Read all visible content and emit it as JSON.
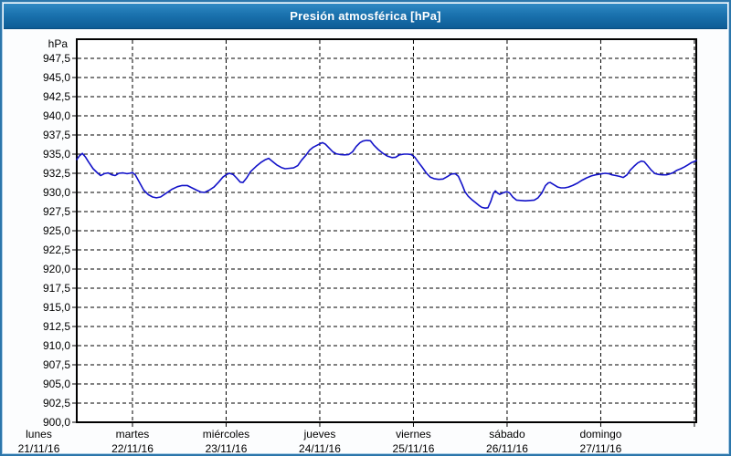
{
  "window": {
    "title": "Presión atmosférica [hPa]"
  },
  "colors": {
    "titlebar_top": "#3089c4",
    "titlebar_bottom": "#0e5c96",
    "frame": "#2c76ab",
    "plot_border": "#000000",
    "grid": "#000000",
    "line": "#1212c8",
    "plot_bg": "#ffffff",
    "text": "#000000",
    "title_text": "#ffffff"
  },
  "chart_data": {
    "type": "line",
    "title": "Presión atmosférica [hPa]",
    "ylabel": "hPa",
    "unit_label": "hPa",
    "ylim": [
      900,
      950
    ],
    "y_tick_step": 2.5,
    "y_tick_labels": [
      "947,5",
      "945,0",
      "942,5",
      "940,0",
      "937,5",
      "935,0",
      "932,5",
      "930,0",
      "927,5",
      "925,0",
      "922,5",
      "920,0",
      "917,5",
      "915,0",
      "912,5",
      "910,0",
      "907,5",
      "905,0",
      "902,5",
      "900,0"
    ],
    "grid": "dashed",
    "legend_position": "none",
    "x_axis": {
      "unit": "days_since_monday_midnight",
      "t_start": 0.405,
      "t_end": 7.02,
      "day_gridlines_at": [
        1,
        2,
        3,
        4,
        5,
        6,
        7
      ],
      "day_labels": [
        {
          "t": 0,
          "name": "lunes",
          "date": "21/11/16"
        },
        {
          "t": 1,
          "name": "martes",
          "date": "22/11/16"
        },
        {
          "t": 2,
          "name": "miércoles",
          "date": "23/11/16"
        },
        {
          "t": 3,
          "name": "jueves",
          "date": "24/11/16"
        },
        {
          "t": 4,
          "name": "viernes",
          "date": "25/11/16"
        },
        {
          "t": 5,
          "name": "sábado",
          "date": "26/11/16"
        },
        {
          "t": 6,
          "name": "domingo",
          "date": "27/11/16"
        }
      ]
    },
    "series": [
      {
        "name": "Presión atmosférica",
        "color": "#1212c8",
        "points": [
          [
            0.405,
            934.3
          ],
          [
            0.435,
            934.8
          ],
          [
            0.465,
            935.1
          ],
          [
            0.5,
            934.6
          ],
          [
            0.53,
            934.0
          ],
          [
            0.58,
            933.1
          ],
          [
            0.63,
            932.5
          ],
          [
            0.66,
            932.2
          ],
          [
            0.7,
            932.45
          ],
          [
            0.74,
            932.55
          ],
          [
            0.78,
            932.3
          ],
          [
            0.815,
            932.2
          ],
          [
            0.855,
            932.5
          ],
          [
            0.9,
            932.55
          ],
          [
            0.94,
            932.45
          ],
          [
            0.97,
            932.5
          ],
          [
            1.0,
            932.6
          ],
          [
            1.03,
            932.3
          ],
          [
            1.07,
            931.4
          ],
          [
            1.12,
            930.3
          ],
          [
            1.17,
            929.7
          ],
          [
            1.215,
            929.4
          ],
          [
            1.255,
            929.3
          ],
          [
            1.3,
            929.4
          ],
          [
            1.36,
            929.9
          ],
          [
            1.42,
            930.4
          ],
          [
            1.48,
            930.75
          ],
          [
            1.53,
            930.9
          ],
          [
            1.585,
            930.9
          ],
          [
            1.635,
            930.6
          ],
          [
            1.685,
            930.3
          ],
          [
            1.73,
            930.05
          ],
          [
            1.77,
            930.0
          ],
          [
            1.82,
            930.3
          ],
          [
            1.87,
            930.7
          ],
          [
            1.92,
            931.35
          ],
          [
            1.965,
            932.0
          ],
          [
            2.005,
            932.35
          ],
          [
            2.035,
            932.5
          ],
          [
            2.075,
            932.35
          ],
          [
            2.11,
            931.9
          ],
          [
            2.15,
            931.35
          ],
          [
            2.18,
            931.3
          ],
          [
            2.22,
            931.9
          ],
          [
            2.26,
            932.7
          ],
          [
            2.32,
            933.4
          ],
          [
            2.37,
            933.9
          ],
          [
            2.415,
            934.25
          ],
          [
            2.455,
            934.45
          ],
          [
            2.49,
            934.1
          ],
          [
            2.54,
            933.6
          ],
          [
            2.59,
            933.25
          ],
          [
            2.63,
            933.1
          ],
          [
            2.68,
            933.15
          ],
          [
            2.72,
            933.2
          ],
          [
            2.765,
            933.5
          ],
          [
            2.805,
            934.2
          ],
          [
            2.855,
            934.9
          ],
          [
            2.89,
            935.5
          ],
          [
            2.93,
            935.9
          ],
          [
            2.97,
            936.15
          ],
          [
            3.01,
            936.4
          ],
          [
            3.03,
            936.5
          ],
          [
            3.06,
            936.3
          ],
          [
            3.1,
            935.8
          ],
          [
            3.14,
            935.3
          ],
          [
            3.175,
            935.05
          ],
          [
            3.215,
            934.95
          ],
          [
            3.265,
            934.9
          ],
          [
            3.31,
            934.95
          ],
          [
            3.35,
            935.3
          ],
          [
            3.39,
            936.0
          ],
          [
            3.43,
            936.5
          ],
          [
            3.46,
            936.7
          ],
          [
            3.5,
            936.8
          ],
          [
            3.54,
            936.75
          ],
          [
            3.575,
            936.2
          ],
          [
            3.625,
            935.6
          ],
          [
            3.675,
            935.1
          ],
          [
            3.72,
            934.75
          ],
          [
            3.77,
            934.55
          ],
          [
            3.81,
            934.6
          ],
          [
            3.85,
            934.9
          ],
          [
            3.9,
            935.0
          ],
          [
            3.94,
            935.0
          ],
          [
            3.975,
            934.95
          ],
          [
            4.015,
            934.6
          ],
          [
            4.055,
            933.9
          ],
          [
            4.09,
            933.35
          ],
          [
            4.14,
            932.5
          ],
          [
            4.18,
            932.0
          ],
          [
            4.22,
            931.8
          ],
          [
            4.27,
            931.7
          ],
          [
            4.315,
            931.75
          ],
          [
            4.365,
            932.1
          ],
          [
            4.405,
            932.4
          ],
          [
            4.445,
            932.45
          ],
          [
            4.48,
            932.1
          ],
          [
            4.52,
            931.0
          ],
          [
            4.55,
            930.1
          ],
          [
            4.585,
            929.5
          ],
          [
            4.62,
            929.1
          ],
          [
            4.66,
            928.7
          ],
          [
            4.7,
            928.3
          ],
          [
            4.73,
            928.05
          ],
          [
            4.765,
            927.95
          ],
          [
            4.795,
            928.0
          ],
          [
            4.825,
            928.8
          ],
          [
            4.855,
            929.9
          ],
          [
            4.875,
            930.2
          ],
          [
            4.9,
            929.9
          ],
          [
            4.92,
            929.75
          ],
          [
            4.95,
            929.9
          ],
          [
            4.98,
            930.05
          ],
          [
            5.0,
            930.1
          ],
          [
            5.03,
            929.9
          ],
          [
            5.06,
            929.4
          ],
          [
            5.1,
            929.0
          ],
          [
            5.145,
            928.95
          ],
          [
            5.195,
            928.9
          ],
          [
            5.245,
            928.95
          ],
          [
            5.29,
            929.0
          ],
          [
            5.33,
            929.3
          ],
          [
            5.37,
            929.9
          ],
          [
            5.41,
            930.9
          ],
          [
            5.44,
            931.25
          ],
          [
            5.46,
            931.3
          ],
          [
            5.5,
            931.0
          ],
          [
            5.54,
            930.7
          ],
          [
            5.575,
            930.6
          ],
          [
            5.615,
            930.6
          ],
          [
            5.655,
            930.7
          ],
          [
            5.7,
            930.9
          ],
          [
            5.75,
            931.2
          ],
          [
            5.8,
            931.6
          ],
          [
            5.85,
            931.9
          ],
          [
            5.9,
            932.15
          ],
          [
            5.945,
            932.3
          ],
          [
            5.995,
            932.4
          ],
          [
            6.045,
            932.5
          ],
          [
            6.085,
            932.45
          ],
          [
            6.12,
            932.3
          ],
          [
            6.16,
            932.2
          ],
          [
            6.2,
            932.1
          ],
          [
            6.24,
            931.95
          ],
          [
            6.28,
            932.3
          ],
          [
            6.315,
            932.9
          ],
          [
            6.355,
            933.4
          ],
          [
            6.395,
            933.85
          ],
          [
            6.435,
            934.1
          ],
          [
            6.465,
            934.0
          ],
          [
            6.5,
            933.5
          ],
          [
            6.54,
            932.9
          ],
          [
            6.58,
            932.45
          ],
          [
            6.62,
            932.35
          ],
          [
            6.66,
            932.3
          ],
          [
            6.7,
            932.3
          ],
          [
            6.735,
            932.4
          ],
          [
            6.775,
            932.6
          ],
          [
            6.815,
            932.9
          ],
          [
            6.855,
            933.1
          ],
          [
            6.895,
            933.35
          ],
          [
            6.93,
            933.6
          ],
          [
            6.97,
            933.9
          ],
          [
            7.0,
            934.05
          ],
          [
            7.02,
            934.15
          ]
        ]
      }
    ]
  }
}
